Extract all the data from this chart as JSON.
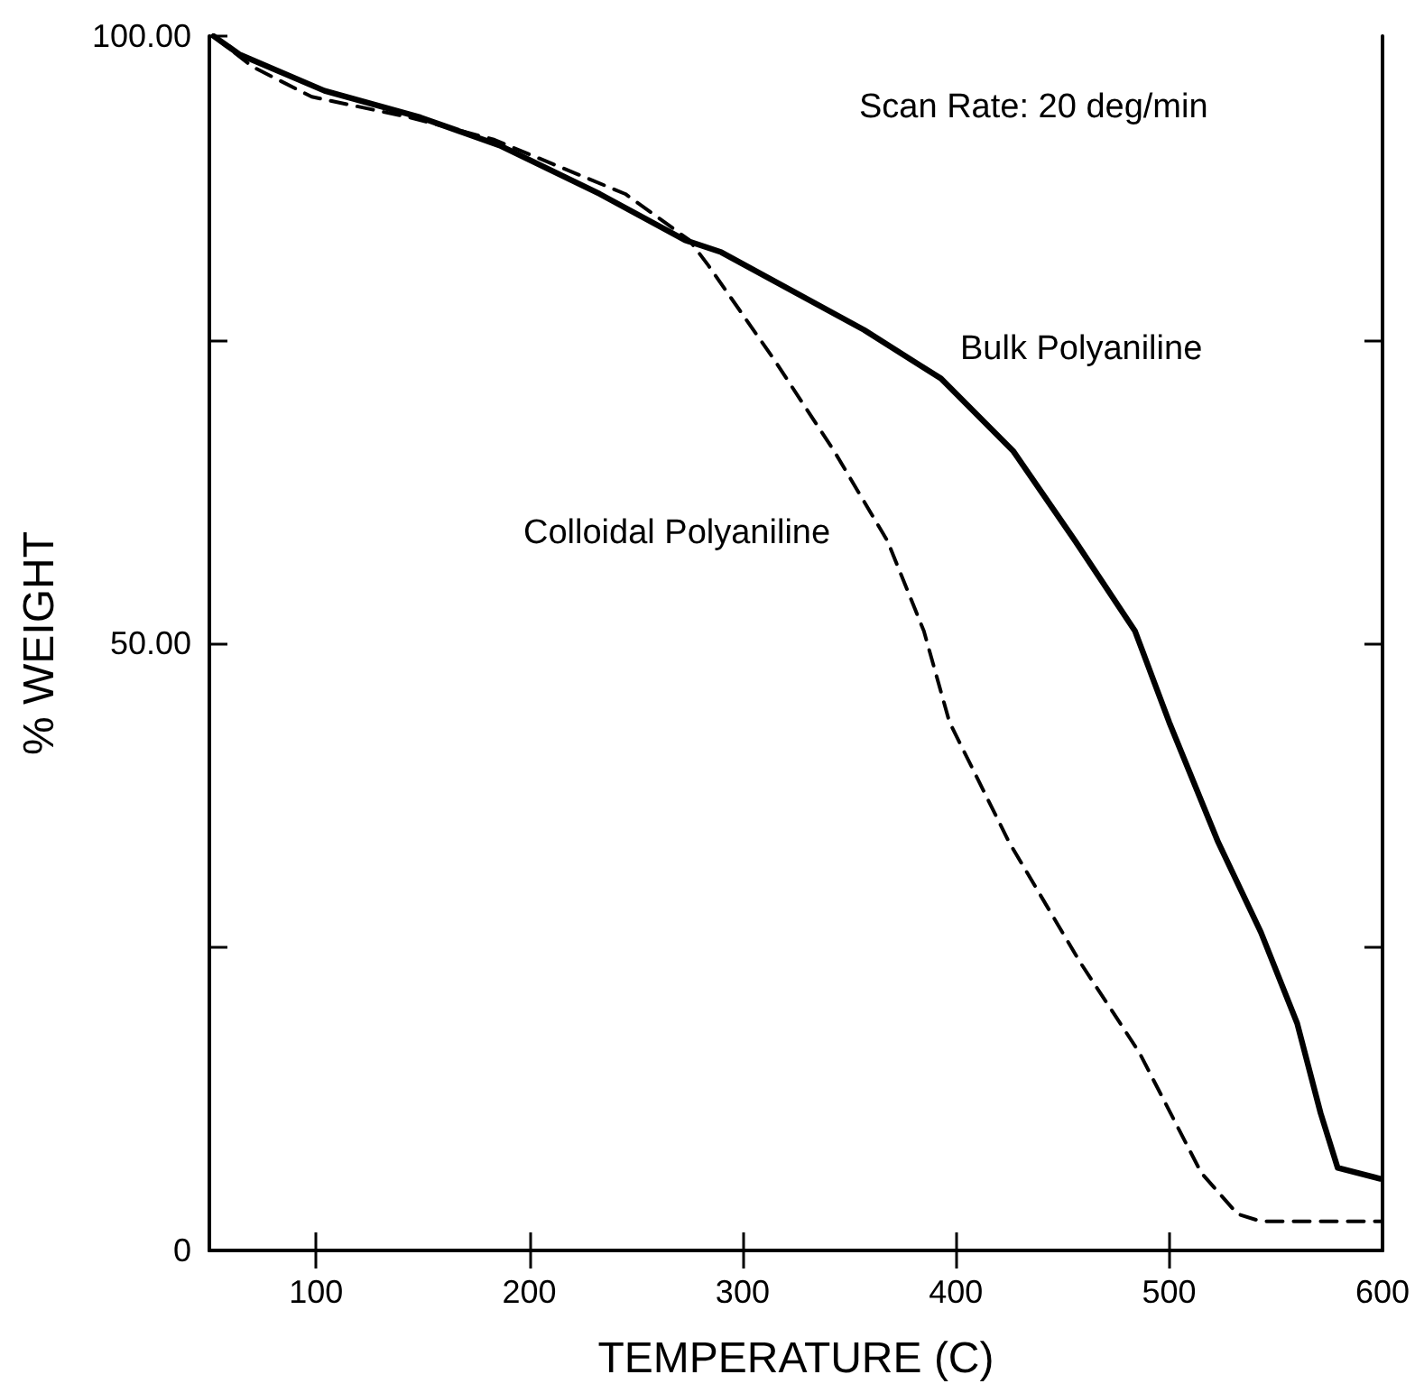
{
  "chart_data": {
    "type": "line",
    "xlabel": "TEMPERATURE (C)",
    "ylabel": "% WEIGHT",
    "annotations": [
      "Scan Rate: 20 deg/min"
    ],
    "xlim": [
      50,
      600
    ],
    "xticks": [
      100,
      200,
      300,
      400,
      500,
      600
    ],
    "ylim": [
      0,
      100
    ],
    "yticks": [
      {
        "value": 0,
        "label": "0"
      },
      {
        "value": 25,
        "label": null
      },
      {
        "value": 50,
        "label": "50.00"
      },
      {
        "value": 75,
        "label": null
      },
      {
        "value": 100,
        "label": "100.00"
      }
    ],
    "grid": false,
    "legend": false,
    "marker": "none",
    "series": [
      {
        "name": "Bulk Polyaniline",
        "color": "#000000",
        "line_style": "solid",
        "x": [
          52,
          64,
          104,
          149,
          186,
          233,
          273,
          290,
          357,
          393,
          427,
          456,
          484,
          500,
          523,
          543,
          560,
          571,
          579,
          599
        ],
        "values": [
          100,
          98.5,
          95.5,
          93.3,
          91,
          87,
          83.2,
          82.2,
          75.8,
          71.8,
          65.8,
          58.4,
          51,
          43.5,
          33.6,
          26.2,
          18.7,
          11.3,
          6.8,
          5.9
        ]
      },
      {
        "name": "Colloidal Polyaniline",
        "color": "#000000",
        "line_style": "dashed",
        "x": [
          52,
          70,
          98,
          144,
          183,
          245,
          275,
          284,
          315,
          343,
          368,
          385,
          397,
          425,
          458,
          486,
          515,
          532,
          543,
          600
        ],
        "values": [
          100,
          97.5,
          95,
          93.3,
          91.5,
          87,
          83.2,
          81.1,
          73.3,
          65.8,
          58.4,
          51,
          43.5,
          33.6,
          23.8,
          16.3,
          6.4,
          3,
          2.4,
          2.4
        ]
      }
    ]
  }
}
